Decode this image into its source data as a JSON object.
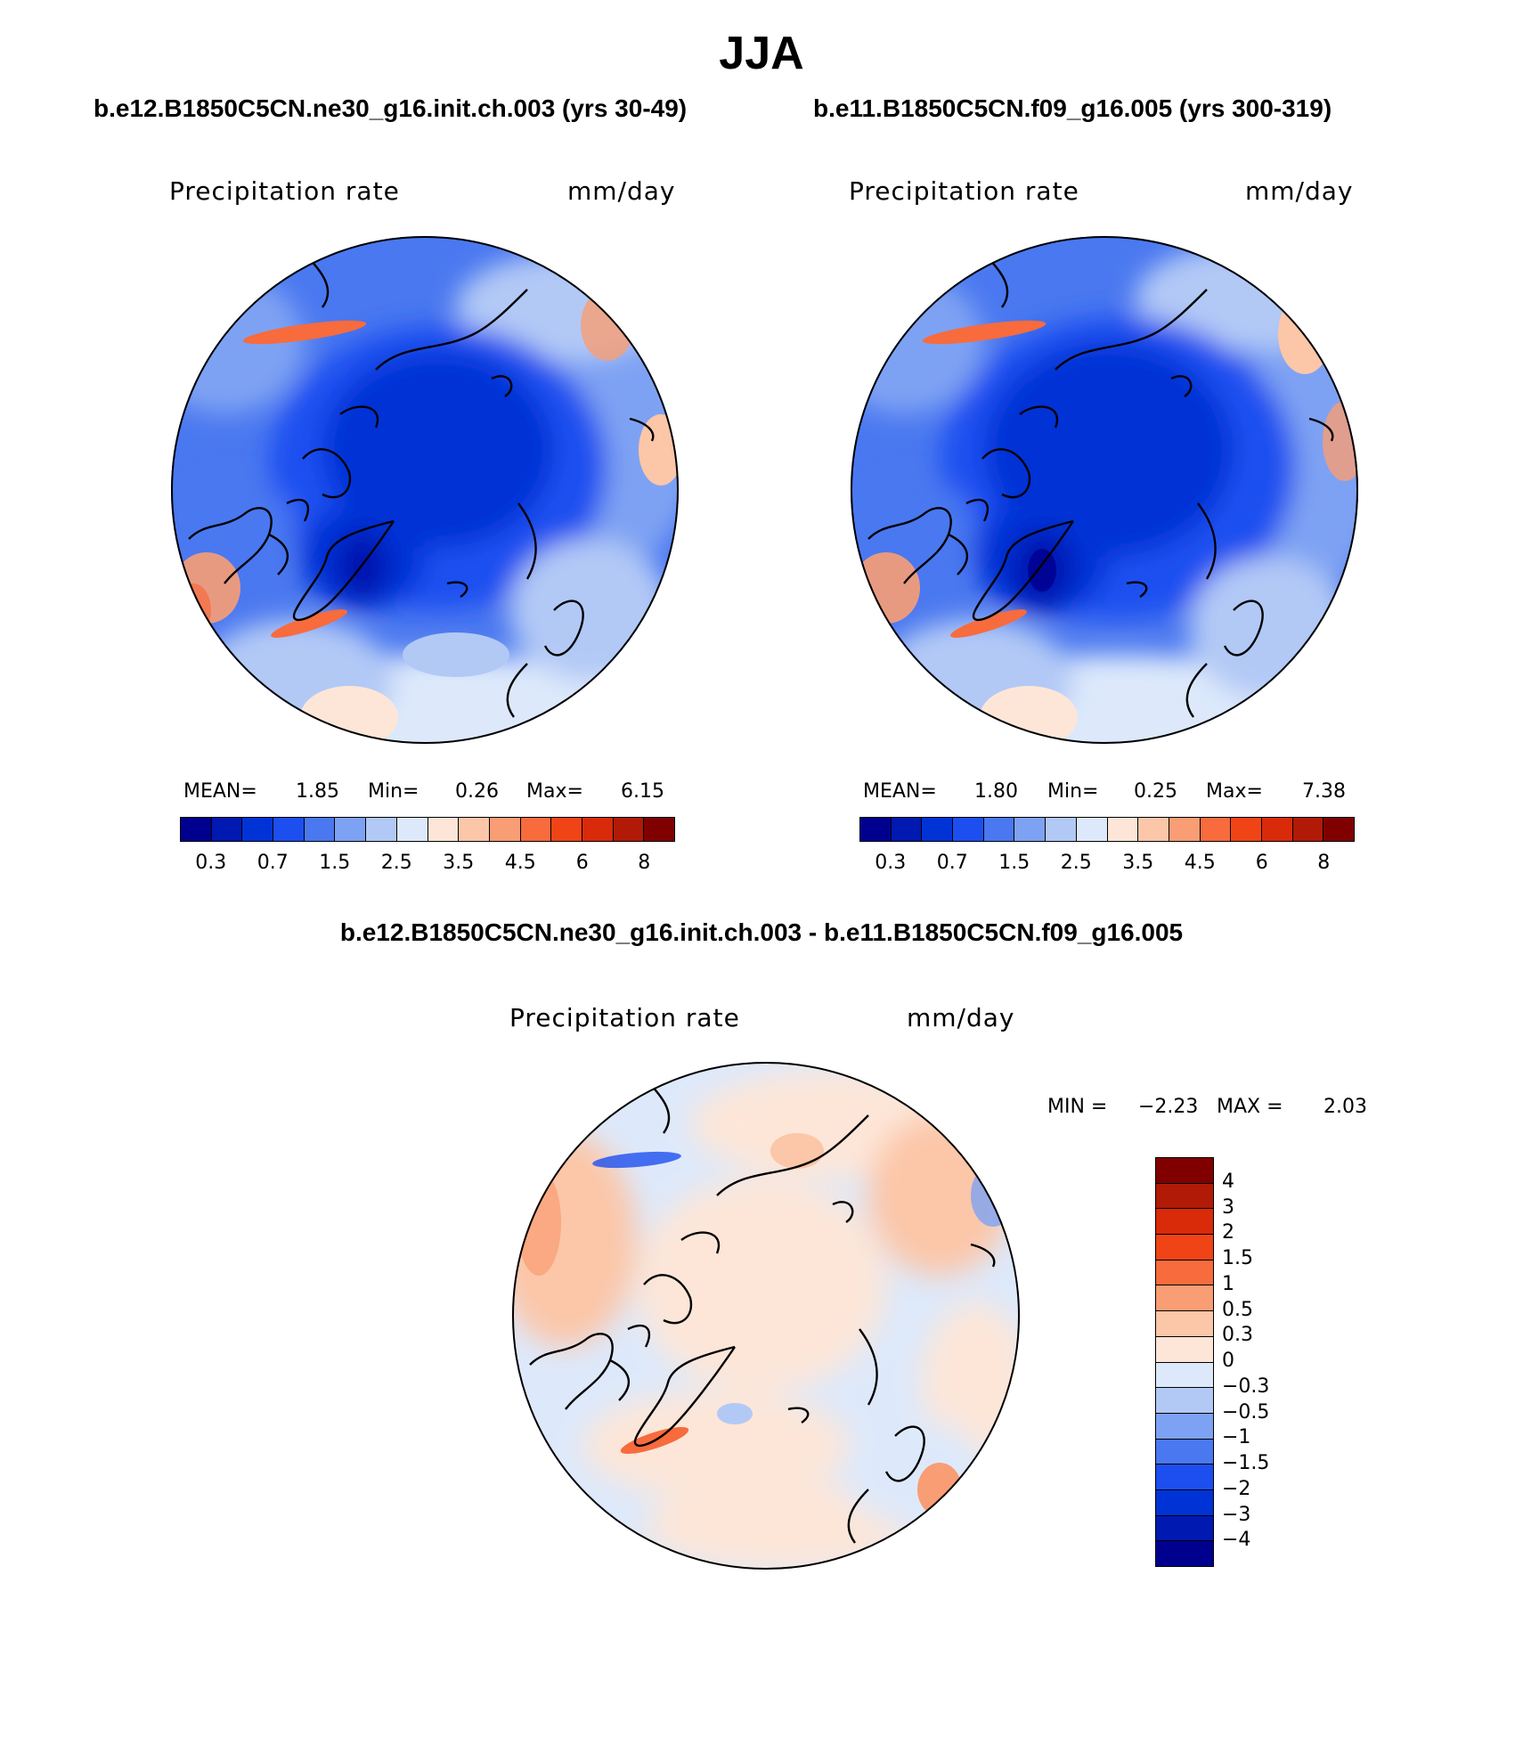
{
  "figure": {
    "title": "JJA"
  },
  "panels": [
    {
      "case_title": "b.e12.B1850C5CN.ne30_g16.init.ch.003 (yrs 30-49)",
      "variable": "Precipitation rate",
      "units": "mm/day",
      "stats": {
        "mean_label": "MEAN=",
        "mean": "1.85",
        "min_label": "Min=",
        "min": "0.26",
        "max_label": "Max=",
        "max": "6.15"
      }
    },
    {
      "case_title": "b.e11.B1850C5CN.f09_g16.005 (yrs 300-319)",
      "variable": "Precipitation rate",
      "units": "mm/day",
      "stats": {
        "mean_label": "MEAN=",
        "mean": "1.80",
        "min_label": "Min=",
        "min": "0.25",
        "max_label": "Max=",
        "max": "7.38"
      }
    }
  ],
  "diff_panel": {
    "title": "b.e12.B1850C5CN.ne30_g16.init.ch.003 - b.e11.B1850C5CN.f09_g16.005",
    "variable": "Precipitation rate",
    "units": "mm/day",
    "stats": {
      "min_label": "MIN =",
      "min": "−2.23",
      "max_label": "MAX =",
      "max": "2.03"
    }
  },
  "colorbar_abs": {
    "tick_labels": [
      "0.3",
      "0.7",
      "1.5",
      "2.5",
      "3.5",
      "4.5",
      "6",
      "8"
    ],
    "colors": [
      "#00008f",
      "#0019b0",
      "#0033d6",
      "#1d4ff0",
      "#4a78f0",
      "#7ea2f3",
      "#b2c9f6",
      "#dde9fb",
      "#fde6d8",
      "#fcc6a8",
      "#f99d74",
      "#f76b3d",
      "#f04417",
      "#d92a0a",
      "#b11a06",
      "#800000"
    ]
  },
  "colorbar_diff": {
    "tick_labels": [
      "4",
      "3",
      "2",
      "1.5",
      "1",
      "0.5",
      "0.3",
      "0",
      "−0.3",
      "−0.5",
      "−1",
      "−1.5",
      "−2",
      "−3",
      "−4"
    ],
    "colors": [
      "#800000",
      "#b11a06",
      "#d92a0a",
      "#f04417",
      "#f76b3d",
      "#f99d74",
      "#fcc6a8",
      "#fde6d8",
      "#dde9fb",
      "#b2c9f6",
      "#7ea2f3",
      "#4a78f0",
      "#1d4ff0",
      "#0033d6",
      "#0019b0",
      "#00008f"
    ]
  }
}
